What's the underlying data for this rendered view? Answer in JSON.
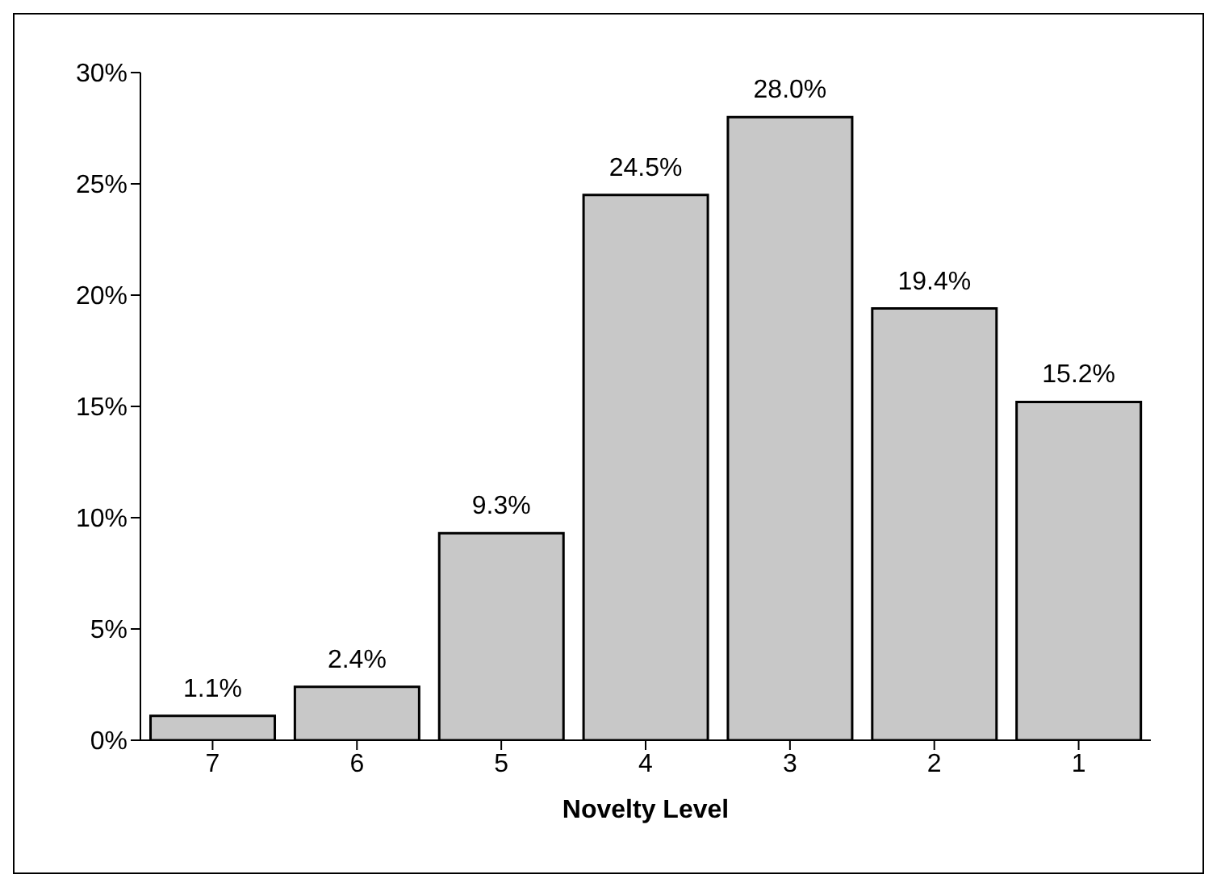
{
  "chart_data": {
    "type": "bar",
    "xlabel": "Novelty Level",
    "categories": [
      "7",
      "6",
      "5",
      "4",
      "3",
      "2",
      "1"
    ],
    "values": [
      1.1,
      2.4,
      9.3,
      24.5,
      28.0,
      19.4,
      15.2
    ],
    "value_labels": [
      "1.1%",
      "2.4%",
      "9.3%",
      "24.5%",
      "28.0%",
      "19.4%",
      "15.2%"
    ],
    "color": "#c8c8c8",
    "ylim": [
      0,
      30
    ],
    "yticks": [
      {
        "value": 0,
        "label": "0%"
      },
      {
        "value": 5,
        "label": "5%"
      },
      {
        "value": 10,
        "label": "10%"
      },
      {
        "value": 15,
        "label": "15%"
      },
      {
        "value": 20,
        "label": "20%"
      },
      {
        "value": 25,
        "label": "25%"
      },
      {
        "value": 30,
        "label": "30%"
      }
    ],
    "grid": false,
    "legend": false
  }
}
